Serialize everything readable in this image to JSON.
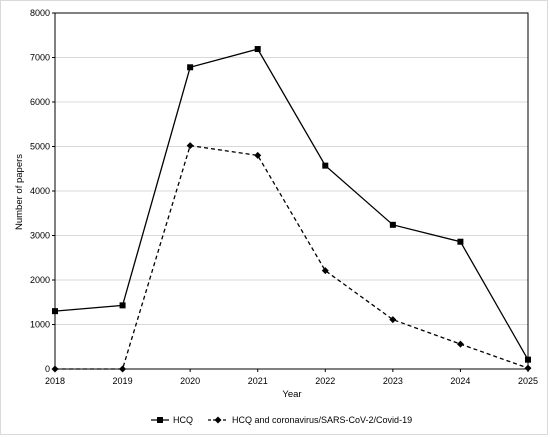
{
  "chart_data": {
    "type": "line",
    "title": "",
    "xlabel": "Year",
    "ylabel": "Number of papers",
    "x": [
      2018,
      2019,
      2020,
      2021,
      2022,
      2023,
      2024,
      2025
    ],
    "x_tick_labels": [
      "2018",
      "2019",
      "2020",
      "2021",
      "2022",
      "2023",
      "2024",
      "2025"
    ],
    "ylim": [
      0,
      8000
    ],
    "y_ticks": [
      0,
      1000,
      2000,
      3000,
      4000,
      5000,
      6000,
      7000,
      8000
    ],
    "y_tick_labels": [
      "0",
      "1000",
      "2000",
      "3000",
      "4000",
      "5000",
      "6000",
      "7000",
      "8000"
    ],
    "grid": true,
    "legend_position": "bottom",
    "series": [
      {
        "name": "HCQ",
        "values": [
          1300,
          1430,
          6780,
          7190,
          4570,
          3240,
          2860,
          210
        ],
        "line_style": "solid",
        "marker": "square",
        "color": "#000000"
      },
      {
        "name": "HCQ and coronavirus/SARS-CoV-2/Covid-19",
        "values": [
          0,
          0,
          5020,
          4800,
          2210,
          1110,
          560,
          20
        ],
        "line_style": "dashed",
        "marker": "diamond",
        "color": "#000000"
      }
    ]
  },
  "colors": {
    "grid": "#d9d9d9",
    "axis": "#000000",
    "series": "#000000"
  }
}
